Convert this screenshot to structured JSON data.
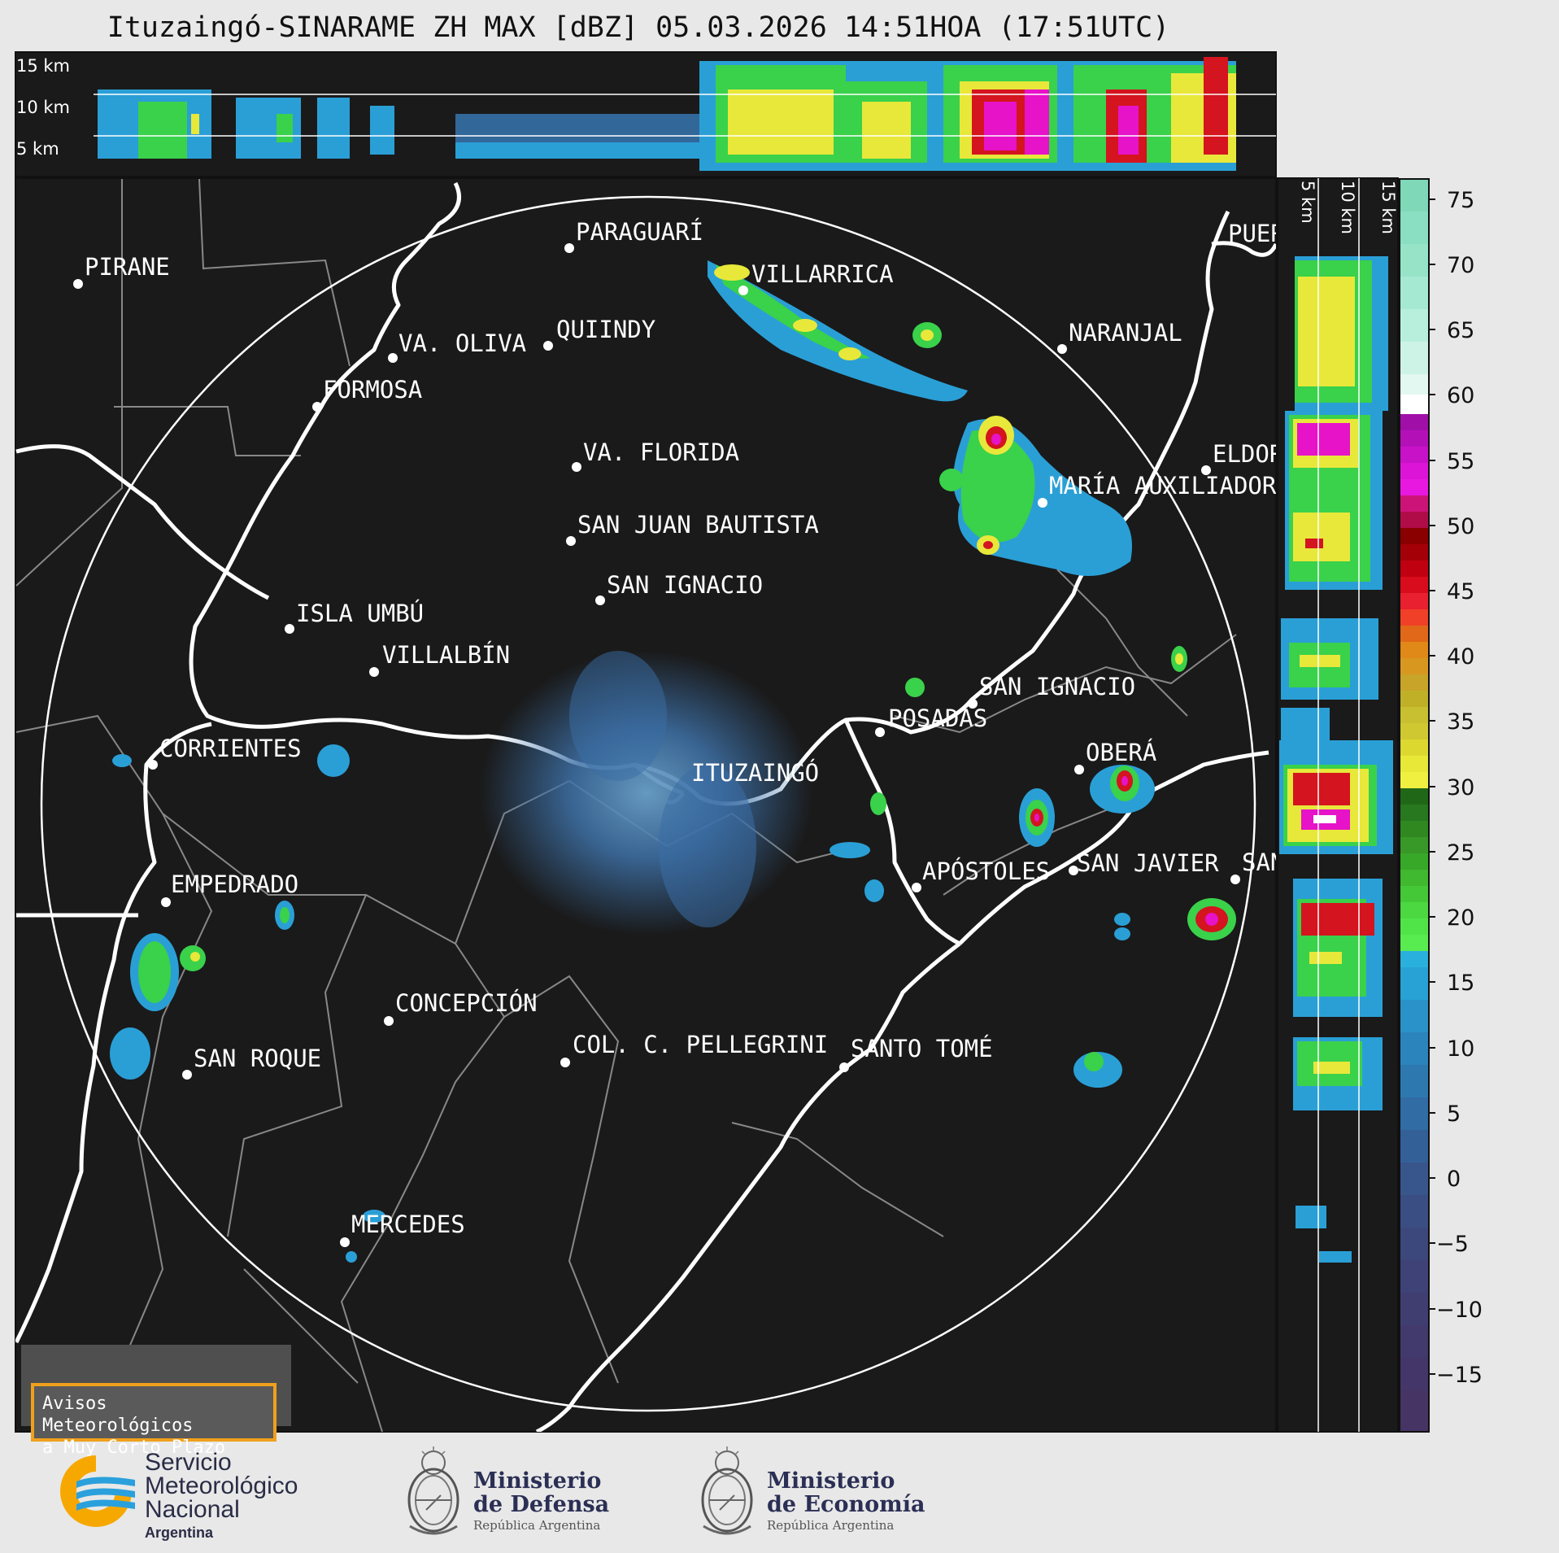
{
  "title": "Ituzaingó-SINARAME ZH MAX [dBZ] 05.03.2026 14:51HOA (17:51UTC)",
  "altitude_labels_top": [
    "15 km",
    "10 km",
    "5 km"
  ],
  "altitude_labels_side": [
    "5 km",
    "10 km",
    "15 km"
  ],
  "colorbar": {
    "ticks": [
      "75",
      "70",
      "65",
      "60",
      "55",
      "50",
      "45",
      "40",
      "35",
      "30",
      "25",
      "20",
      "15",
      "10",
      "5",
      "0",
      "−5",
      "−10",
      "−15"
    ]
  },
  "cities": [
    {
      "name": "PIRANE"
    },
    {
      "name": "PARAGUARÍ"
    },
    {
      "name": "VILLARRICA"
    },
    {
      "name": "QUIINDY"
    },
    {
      "name": "VA. OLIVA"
    },
    {
      "name": "FORMOSA"
    },
    {
      "name": "NARANJAL"
    },
    {
      "name": "VA. FLORIDA"
    },
    {
      "name": "SAN JUAN BAUTISTA"
    },
    {
      "name": "ELDOR"
    },
    {
      "name": "MARÍA AUXILIADOR"
    },
    {
      "name": "SAN IGNACIO"
    },
    {
      "name": "ISLA UMBÚ"
    },
    {
      "name": "VILLALBÍN"
    },
    {
      "name": "SAN IGNACIO"
    },
    {
      "name": "POSADAS"
    },
    {
      "name": "CORRIENTES"
    },
    {
      "name": "ITUZAINGÓ"
    },
    {
      "name": "OBERÁ"
    },
    {
      "name": "EMPEDRADO"
    },
    {
      "name": "APÓSTOLES"
    },
    {
      "name": "SAN JAVIER"
    },
    {
      "name": "SAN"
    },
    {
      "name": "CONCEPCIÓN"
    },
    {
      "name": "COL. C. PELLEGRINI"
    },
    {
      "name": "SANTO TOMÉ"
    },
    {
      "name": "SAN ROQUE"
    },
    {
      "name": "MERCEDES"
    },
    {
      "name": "PUER"
    }
  ],
  "warning_box": {
    "line1": "Avisos Meteorológicos",
    "line2": "a Muy Corto Plazo"
  },
  "logos": {
    "smn": {
      "line1": "Servicio",
      "line2": "Meteorológico",
      "line3": "Nacional",
      "line4": "Argentina"
    },
    "defensa": {
      "line1": "Ministerio",
      "line2": "de Defensa",
      "line3": "República Argentina"
    },
    "economia": {
      "line1": "Ministerio",
      "line2": "de Economía",
      "line3": "República Argentina"
    }
  },
  "colors": {
    "background": "#1a1a1a",
    "border": "#ffffff",
    "province": "#888888",
    "smn_accent": "#f6a800",
    "smn_blue": "#2aa0dc"
  }
}
